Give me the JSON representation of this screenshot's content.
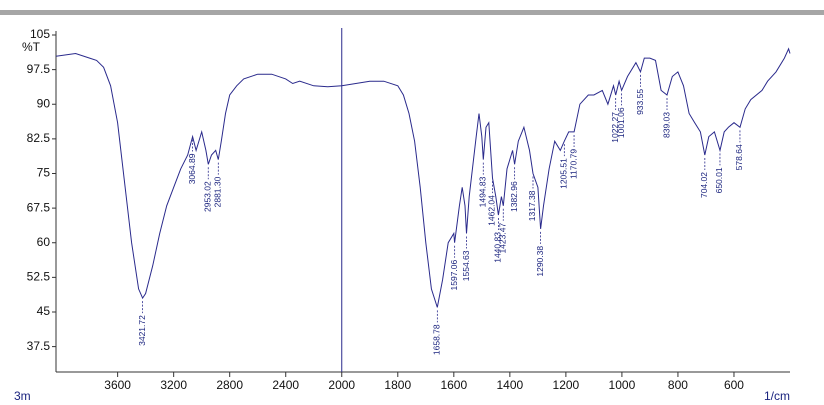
{
  "chart_data": {
    "type": "line",
    "y_label": "%T",
    "x_label": "1/cm",
    "corner_label": "3m",
    "xlim": [
      4040,
      400
    ],
    "x_break": 2000,
    "ylim": [
      32,
      105
    ],
    "xticks": [
      3600,
      3200,
      2800,
      2400,
      2000,
      1800,
      1600,
      1400,
      1200,
      1000,
      800,
      600
    ],
    "yticks": [
      105,
      97.5,
      90,
      82.5,
      75,
      67.5,
      60,
      52.5,
      45,
      37.5
    ],
    "color": "#2a2a8c",
    "x": [
      4040,
      3900,
      3800,
      3750,
      3700,
      3650,
      3600,
      3550,
      3500,
      3450,
      3421.72,
      3400,
      3350,
      3300,
      3250,
      3200,
      3150,
      3100,
      3064.89,
      3040,
      3000,
      2970,
      2953.02,
      2930,
      2900,
      2881.3,
      2860,
      2830,
      2800,
      2750,
      2700,
      2600,
      2500,
      2400,
      2350,
      2300,
      2200,
      2100,
      2000,
      1950,
      1900,
      1850,
      1800,
      1780,
      1760,
      1740,
      1720,
      1700,
      1680,
      1658.78,
      1640,
      1620,
      1600,
      1597.06,
      1580,
      1570,
      1560,
      1554.63,
      1545,
      1520,
      1510,
      1500,
      1494.83,
      1485,
      1475,
      1462.04,
      1450,
      1440.83,
      1430,
      1423.47,
      1410,
      1400,
      1390,
      1382.96,
      1370,
      1350,
      1330,
      1317.38,
      1300,
      1290.38,
      1280,
      1260,
      1240,
      1220,
      1205.51,
      1190,
      1170.79,
      1150,
      1120,
      1100,
      1070,
      1050,
      1030,
      1022.27,
      1010,
      1001.06,
      980,
      950,
      933.55,
      920,
      900,
      880,
      860,
      839.03,
      820,
      800,
      780,
      760,
      740,
      720,
      704.02,
      690,
      670,
      650.01,
      635,
      620,
      600,
      578.64,
      560,
      540,
      500,
      480,
      450,
      420,
      405,
      400
    ],
    "values": [
      100.4,
      101,
      100,
      99.5,
      98,
      94,
      86,
      73,
      60,
      50,
      48,
      49,
      55,
      62,
      68,
      72,
      76,
      79,
      83,
      80,
      84,
      80,
      77,
      79,
      80,
      78,
      82,
      88,
      92,
      94,
      95.5,
      96.5,
      96.5,
      95.5,
      94.5,
      95,
      94,
      93.8,
      94,
      94.5,
      95,
      95,
      94,
      92,
      88,
      82,
      72,
      60,
      50,
      46,
      52,
      60,
      62,
      60,
      68,
      72,
      68,
      62,
      70,
      83,
      88,
      83,
      78,
      85,
      86,
      74,
      70,
      66,
      70,
      68,
      76,
      78,
      80,
      77,
      82,
      85,
      80,
      75,
      72,
      63,
      68,
      76,
      82,
      80,
      82,
      84,
      84,
      90,
      92,
      92,
      93,
      90,
      94,
      92,
      95,
      93,
      96,
      99,
      97,
      100,
      100,
      99.5,
      93,
      92,
      96,
      97,
      94,
      88,
      86,
      84,
      79,
      83,
      84,
      80,
      84,
      85,
      86,
      85,
      89,
      91,
      93,
      95,
      97,
      100,
      102,
      101
    ],
    "peaks": [
      {
        "x": 3421.72,
        "y": 48,
        "label": "3421.72"
      },
      {
        "x": 3064.89,
        "y": 83,
        "label": "3064.89"
      },
      {
        "x": 2953.02,
        "y": 77,
        "label": "2953.02"
      },
      {
        "x": 2881.3,
        "y": 78,
        "label": "2881.30"
      },
      {
        "x": 1658.78,
        "y": 46,
        "label": "1658.78"
      },
      {
        "x": 1597.06,
        "y": 60,
        "label": "1597.06"
      },
      {
        "x": 1554.63,
        "y": 62,
        "label": "1554.63"
      },
      {
        "x": 1494.83,
        "y": 78,
        "label": "1494.83"
      },
      {
        "x": 1462.04,
        "y": 74,
        "label": "1462.04"
      },
      {
        "x": 1440.83,
        "y": 66,
        "label": "1440.83"
      },
      {
        "x": 1423.47,
        "y": 68,
        "label": "1423.47"
      },
      {
        "x": 1382.96,
        "y": 77,
        "label": "1382.96"
      },
      {
        "x": 1317.38,
        "y": 75,
        "label": "1317.38"
      },
      {
        "x": 1290.38,
        "y": 63,
        "label": "1290.38"
      },
      {
        "x": 1205.51,
        "y": 82,
        "label": "1205.51"
      },
      {
        "x": 1170.79,
        "y": 84,
        "label": "1170.79"
      },
      {
        "x": 1022.27,
        "y": 92,
        "label": "1022.27"
      },
      {
        "x": 1001.06,
        "y": 93,
        "label": "1001.06"
      },
      {
        "x": 933.55,
        "y": 97,
        "label": "933.55"
      },
      {
        "x": 839.03,
        "y": 92,
        "label": "839.03"
      },
      {
        "x": 704.02,
        "y": 79,
        "label": "704.02"
      },
      {
        "x": 650.01,
        "y": 80,
        "label": "650.01"
      },
      {
        "x": 578.64,
        "y": 85,
        "label": "578.64"
      }
    ]
  }
}
